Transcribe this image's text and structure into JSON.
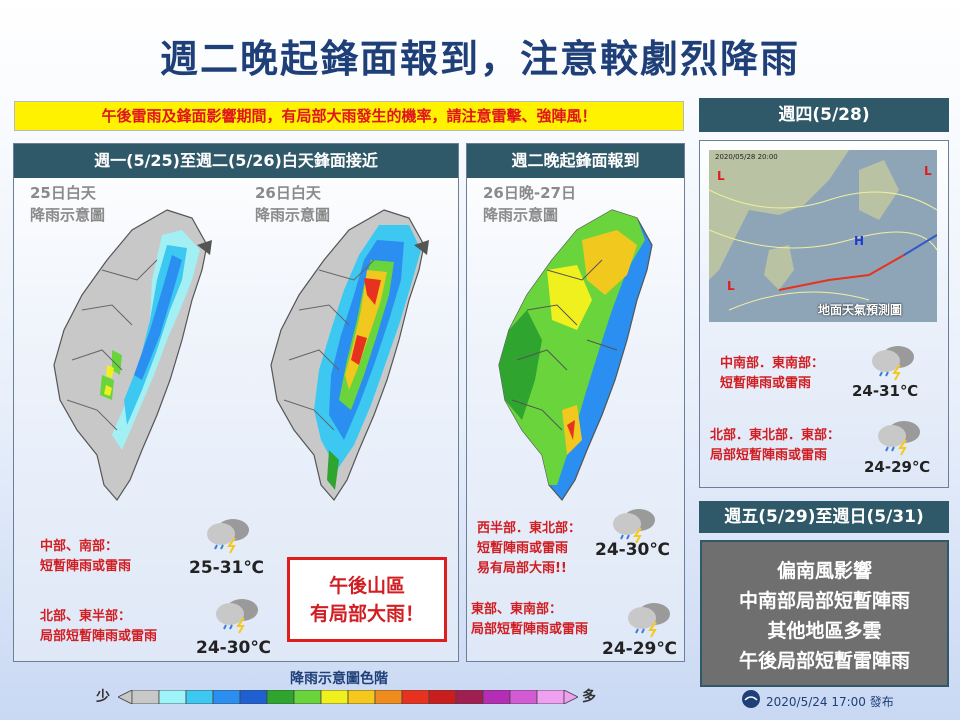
{
  "title": "週二晚起鋒面報到，注意較劇烈降雨",
  "warning": "午後雷雨及鋒面影響期間，有局部大雨發生的機率，請注意雷擊、強陣風！",
  "panel1": {
    "heading": "週一(5/25)至週二(5/26)白天鋒面接近",
    "map1_label": [
      "25日白天",
      "降雨示意圖"
    ],
    "map2_label": [
      "26日白天",
      "降雨示意圖"
    ],
    "note1_lines": [
      "中部、南部：",
      "短暫陣雨或雷雨"
    ],
    "temp1": "25-31℃",
    "note2_lines": [
      "北部、東半部：",
      "局部短暫陣雨或雷雨"
    ],
    "temp2": "24-30℃",
    "alert_lines": [
      "午後山區",
      "有局部大雨！"
    ]
  },
  "panel2": {
    "heading": "週二晚起鋒面報到",
    "map_label": [
      "26日晚-27日",
      "降雨示意圖"
    ],
    "note1_lines": [
      "西半部．東北部：",
      "短暫陣雨或雷雨",
      "易有局部大雨!!"
    ],
    "temp1": "24-30℃",
    "note2_lines": [
      "東部、東南部：",
      "局部短暫陣雨或雷雨"
    ],
    "temp2": "24-29℃"
  },
  "side": {
    "thu_heading": "週四(5/28)",
    "weather_map_date": "2020/05/28 20:00",
    "weather_map_caption": "地面天氣預測圖",
    "note1_lines": [
      "中南部．東南部：",
      "短暫陣雨或雷雨"
    ],
    "temp1": "24-31℃",
    "note2_lines": [
      "北部．東北部．東部：",
      "局部短暫陣雨或雷雨"
    ],
    "temp2": "24-29℃",
    "weekend_heading": "週五(5/29)至週日(5/31)",
    "weekend_lines": [
      "偏南風影響",
      "中南部局部短暫陣雨",
      "其他地區多雲",
      "午後局部短暫雷陣雨"
    ]
  },
  "scale": {
    "title": "降雨示意圖色階",
    "low": "少",
    "high": "多",
    "colors": [
      "#c8c8c8",
      "#9ef4f8",
      "#3cc8f0",
      "#2a8ff0",
      "#1e5fd2",
      "#2fa42f",
      "#6ad43c",
      "#f0f01e",
      "#f5c81e",
      "#f08c1e",
      "#e6321e",
      "#c81e1e",
      "#a01e50",
      "#b42db4",
      "#d25ad2",
      "#f0a0f0"
    ]
  },
  "footer": "2020/5/24 17:00  發布",
  "colors": {
    "header_bg": "#2f5968",
    "title": "#1f3f78",
    "alert": "#d11e22",
    "warning_bg": "#fff200"
  }
}
